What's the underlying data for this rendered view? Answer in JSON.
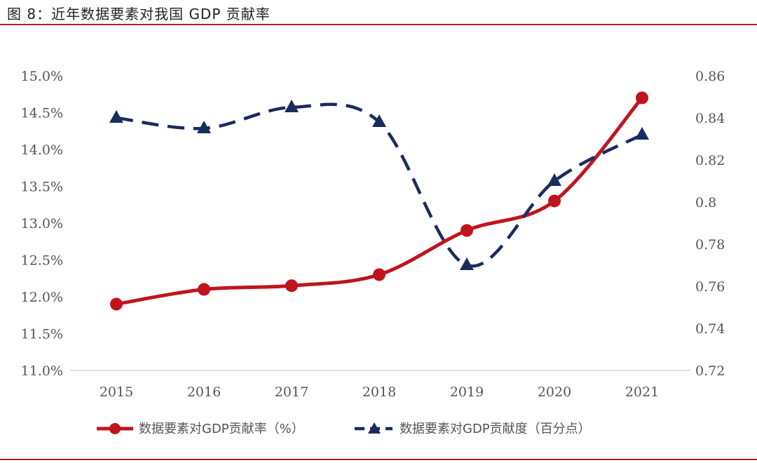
{
  "figure": {
    "title": "图 8：近年数据要素对我国 GDP 贡献率"
  },
  "chart_data": {
    "type": "line",
    "categories": [
      "2015",
      "2016",
      "2017",
      "2018",
      "2019",
      "2020",
      "2021"
    ],
    "series": [
      {
        "name": "数据要素对GDP贡献率（%）",
        "axis": "left",
        "unit": "%",
        "values": [
          11.9,
          12.1,
          12.15,
          12.3,
          12.9,
          13.3,
          14.7
        ],
        "color": "#c0141c",
        "style": "solid",
        "marker": "circle"
      },
      {
        "name": "数据要素对GDP贡献度（百分点）",
        "axis": "right",
        "unit": "百分点",
        "values": [
          0.84,
          0.835,
          0.845,
          0.838,
          0.77,
          0.81,
          0.832
        ],
        "color": "#1a2b5e",
        "style": "dashed",
        "marker": "triangle"
      }
    ],
    "y_left": {
      "min": 11.0,
      "max": 15.0,
      "ticks": [
        "11.0%",
        "11.5%",
        "12.0%",
        "12.5%",
        "13.0%",
        "13.5%",
        "14.0%",
        "14.5%",
        "15.0%"
      ]
    },
    "y_right": {
      "min": 0.72,
      "max": 0.86,
      "ticks": [
        "0.72",
        "0.74",
        "0.76",
        "0.78",
        "0.8",
        "0.82",
        "0.84",
        "0.86"
      ]
    },
    "grid": false,
    "legend_position": "bottom"
  }
}
